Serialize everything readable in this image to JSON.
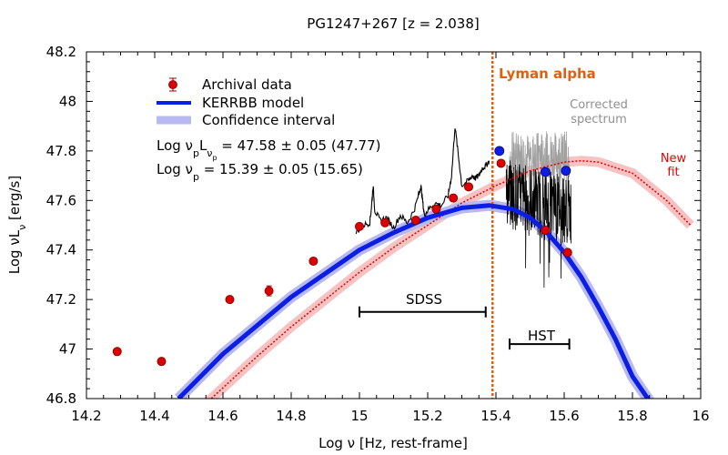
{
  "chart_data": {
    "type": "scatter",
    "title": "PG1247+267  [z = 2.038]",
    "xlabel": "Log ν  [Hz, rest-frame]",
    "ylabel": "Log νLν  [erg/s]",
    "xlim": [
      14.2,
      16.0
    ],
    "ylim": [
      46.8,
      48.2
    ],
    "x_ticks": [
      14.2,
      14.4,
      14.6,
      14.8,
      15.0,
      15.2,
      15.4,
      15.6,
      15.8,
      16.0
    ],
    "x_tick_labels": [
      "14.2",
      "14.4",
      "14.6",
      "14.8",
      "15",
      "15.2",
      "15.4",
      "15.6",
      "15.8",
      "16"
    ],
    "y_ticks": [
      46.8,
      47.0,
      47.2,
      47.4,
      47.6,
      47.8,
      48.0,
      48.2
    ],
    "y_tick_labels": [
      "46.8",
      "47",
      "47.2",
      "47.4",
      "47.6",
      "47.8",
      "48",
      "48.2"
    ],
    "grid": false,
    "colors": {
      "archival": "#dd0000",
      "kerrbb": "#0a1ee6",
      "confidence": "#b8b8f2",
      "newfit_band": "#f7c2c2",
      "newfit_line": "#e60000",
      "lyman": "#e06010",
      "corrected_spectrum": "#a0a0a0",
      "corrected_text": "#909090",
      "newfit_text": "#e60000",
      "spectrum": "#000000"
    },
    "series": [
      {
        "name": "Archival data",
        "kind": "points",
        "x": [
          14.29,
          14.42,
          14.62,
          14.735,
          14.865,
          15.0,
          15.075,
          15.165,
          15.225,
          15.275,
          15.32,
          15.415,
          15.545,
          15.61
        ],
        "y": [
          46.99,
          46.95,
          47.2,
          47.235,
          47.355,
          47.495,
          47.51,
          47.52,
          47.565,
          47.61,
          47.655,
          47.75,
          47.48,
          47.39
        ],
        "err": [
          0,
          0,
          0,
          0.02,
          0,
          0,
          0,
          0,
          0,
          0,
          0,
          0,
          0,
          0
        ]
      },
      {
        "name": "Corrected HST points",
        "kind": "points",
        "x": [
          15.41,
          15.545,
          15.605
        ],
        "y": [
          47.8,
          47.715,
          47.72
        ]
      },
      {
        "name": "KERRBB model",
        "kind": "line",
        "x": [
          14.47,
          14.6,
          14.8,
          15.0,
          15.1,
          15.2,
          15.3,
          15.38,
          15.45,
          15.5,
          15.55,
          15.6,
          15.65,
          15.7,
          15.75,
          15.8,
          15.85
        ],
        "y": [
          46.8,
          46.98,
          47.21,
          47.4,
          47.47,
          47.53,
          47.57,
          47.58,
          47.565,
          47.53,
          47.47,
          47.39,
          47.29,
          47.17,
          47.04,
          46.89,
          46.79
        ]
      },
      {
        "name": "Confidence interval",
        "kind": "band",
        "x": [
          14.47,
          14.6,
          14.8,
          15.0,
          15.1,
          15.2,
          15.3,
          15.38,
          15.45,
          15.5,
          15.55,
          15.6,
          15.65,
          15.7,
          15.75,
          15.8,
          15.85
        ],
        "y": [
          46.8,
          46.98,
          47.21,
          47.4,
          47.47,
          47.53,
          47.57,
          47.58,
          47.565,
          47.53,
          47.47,
          47.39,
          47.29,
          47.17,
          47.04,
          46.89,
          46.79
        ],
        "width": 0.045
      },
      {
        "name": "New fit",
        "kind": "line",
        "x": [
          14.55,
          14.7,
          14.8,
          14.9,
          15.0,
          15.1,
          15.2,
          15.3,
          15.4,
          15.5,
          15.6,
          15.65,
          15.7,
          15.8,
          15.9,
          15.97
        ],
        "y": [
          46.78,
          46.97,
          47.09,
          47.2,
          47.31,
          47.41,
          47.5,
          47.59,
          47.66,
          47.72,
          47.755,
          47.76,
          47.755,
          47.71,
          47.6,
          47.5
        ]
      },
      {
        "name": "New fit band",
        "kind": "band",
        "x": [
          14.55,
          14.7,
          14.8,
          14.9,
          15.0,
          15.1,
          15.2,
          15.3,
          15.4,
          15.5,
          15.6,
          15.65,
          15.7,
          15.8,
          15.9,
          15.97
        ],
        "y": [
          46.78,
          46.97,
          47.09,
          47.2,
          47.31,
          47.41,
          47.5,
          47.59,
          47.66,
          47.72,
          47.755,
          47.76,
          47.755,
          47.71,
          47.6,
          47.5
        ],
        "width": 0.04
      },
      {
        "name": "SDSS spectrum",
        "kind": "spectrum",
        "x": [
          14.99,
          15.01,
          15.03,
          15.035,
          15.04,
          15.045,
          15.06,
          15.08,
          15.1,
          15.12,
          15.14,
          15.16,
          15.175,
          15.18,
          15.185,
          15.19,
          15.2,
          15.22,
          15.24,
          15.26,
          15.27,
          15.28,
          15.29,
          15.3,
          15.32,
          15.33,
          15.34,
          15.35,
          15.36,
          15.37,
          15.38
        ],
        "y": [
          47.47,
          47.5,
          47.51,
          47.57,
          47.66,
          47.56,
          47.52,
          47.53,
          47.49,
          47.54,
          47.51,
          47.56,
          47.63,
          47.66,
          47.6,
          47.54,
          47.56,
          47.59,
          47.58,
          47.62,
          47.7,
          47.9,
          47.78,
          47.66,
          47.68,
          47.7,
          47.69,
          47.7,
          47.73,
          47.74,
          47.76
        ]
      },
      {
        "name": "HST spectrum",
        "kind": "noisy",
        "x_range": [
          15.43,
          15.62
        ],
        "y_center": 47.63,
        "y_spread": 0.14,
        "y_drift": -0.07
      },
      {
        "name": "Corrected spectrum",
        "kind": "noisy",
        "x_range": [
          15.44,
          15.615
        ],
        "y_center": 47.78,
        "y_spread": 0.1,
        "y_drift": 0.0
      }
    ],
    "lyman_alpha_x": 15.39,
    "sdss_range": [
      15.0,
      15.37
    ],
    "sdss_y": 47.15,
    "hst_range": [
      15.44,
      15.615
    ],
    "hst_y": 47.02,
    "legend": [
      {
        "label": "Archival data",
        "kind": "marker"
      },
      {
        "label": "KERRBB model",
        "kind": "line"
      },
      {
        "label": "Confidence interval",
        "kind": "band"
      }
    ],
    "legend_position": "top-left",
    "annotations": {
      "lyman": "Lyman alpha",
      "corrected_line1": "Corrected",
      "corrected_line2": "spectrum",
      "newfit_line1": "New",
      "newfit_line2": "fit",
      "sdss": "SDSS",
      "hst": "HST",
      "lum_prefix": "Log ν",
      "lum_mid": "L",
      "lum_value": " = 47.58 ± 0.05 (47.77)",
      "freq_prefix": "Log ν",
      "freq_sub": "p",
      "freq_value": " = 15.39 ± 0.05 (15.65)",
      "sub_p": "p",
      "sub_nu": "ν",
      "sub_nu_p": "p"
    }
  }
}
